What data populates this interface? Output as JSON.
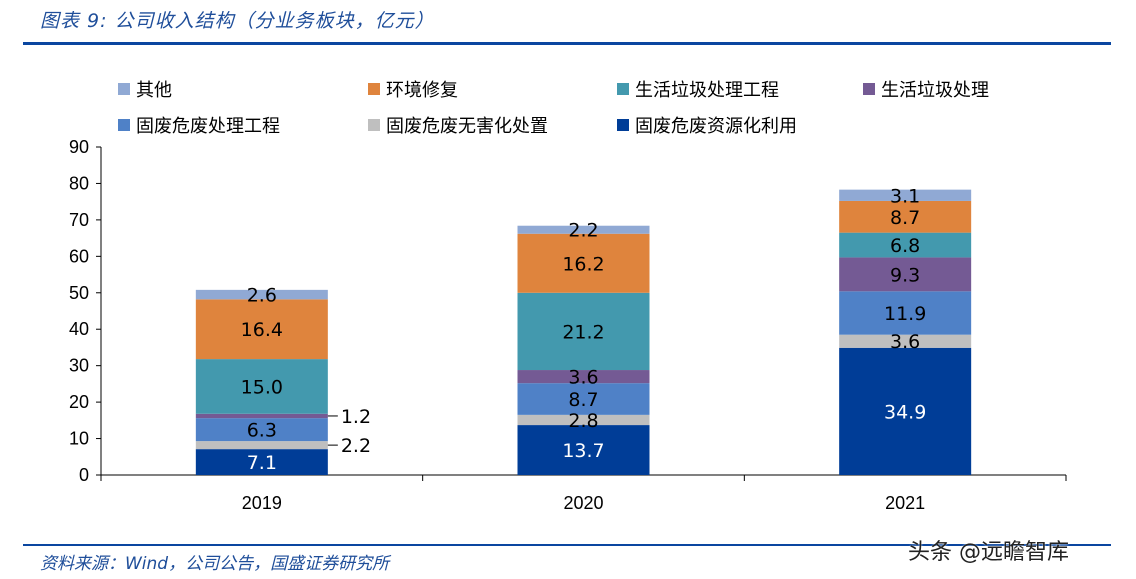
{
  "title": "图表 9:  公司收入结构（分业务板块，亿元）",
  "source": "资料来源：Wind，公司公告，国盛证券研究所",
  "watermark": "头条 @远瞻智库",
  "chart_data": {
    "type": "bar",
    "stacked": true,
    "categories": [
      "2019",
      "2020",
      "2021"
    ],
    "ylim": [
      0,
      90
    ],
    "yticks": [
      0,
      10,
      20,
      30,
      40,
      50,
      60,
      70,
      80,
      90
    ],
    "grid": false,
    "legend_placement": "top",
    "legend_order": [
      "其他",
      "环境修复",
      "生活垃圾处理工程",
      "生活垃圾处理",
      "固废危废处理工程",
      "固废危废无害化处置",
      "固废危废资源化利用"
    ],
    "series": [
      {
        "name": "固废危废资源化利用",
        "values": [
          7.1,
          13.7,
          34.9
        ],
        "color": "#003d97",
        "label_color": "#ffffff"
      },
      {
        "name": "固废危废无害化处置",
        "values": [
          2.2,
          2.8,
          3.6
        ],
        "color": "#bfbfbf",
        "label_color": "#000000"
      },
      {
        "name": "固废危废处理工程",
        "values": [
          6.3,
          8.7,
          11.9
        ],
        "color": "#4f81c7",
        "label_color": "#000000"
      },
      {
        "name": "生活垃圾处理",
        "values": [
          1.2,
          3.6,
          9.3
        ],
        "color": "#745a94",
        "label_color": "#000000"
      },
      {
        "name": "生活垃圾处理工程",
        "values": [
          15.0,
          21.2,
          6.8
        ],
        "color": "#4399ae",
        "label_color": "#000000"
      },
      {
        "name": "环境修复",
        "values": [
          16.4,
          16.2,
          8.7
        ],
        "color": "#df843d",
        "label_color": "#000000"
      },
      {
        "name": "其他",
        "values": [
          2.6,
          2.2,
          3.1
        ],
        "color": "#90a9d4",
        "label_color": "#000000"
      }
    ]
  }
}
